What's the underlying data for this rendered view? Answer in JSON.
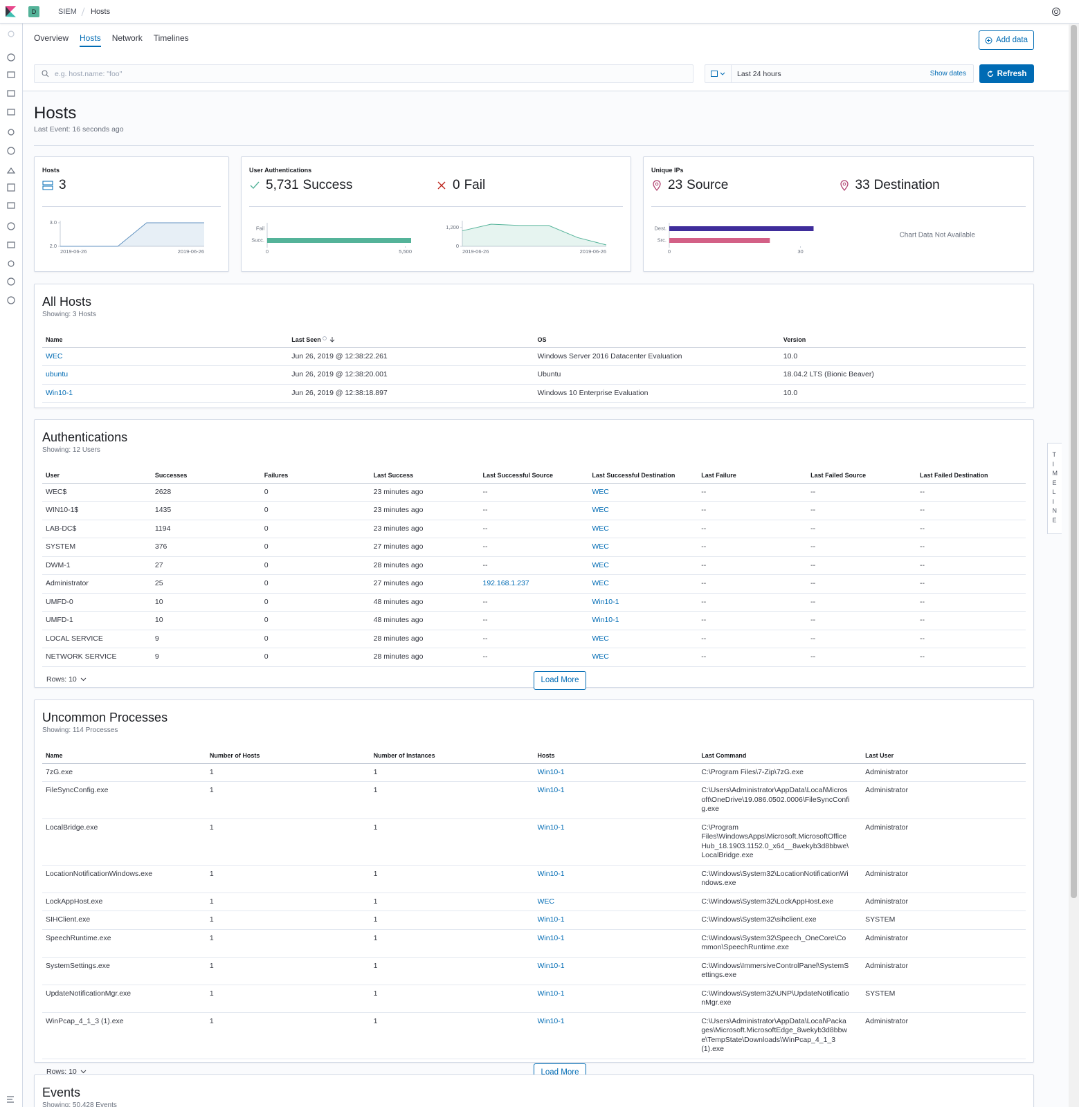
{
  "header": {
    "badge": "D",
    "breadcrumbs": [
      "SIEM",
      "Hosts"
    ]
  },
  "tabs": [
    "Overview",
    "Hosts",
    "Network",
    "Timelines"
  ],
  "active_tab": 1,
  "add_data": "Add data",
  "search_placeholder": "e.g. host.name: \"foo\"",
  "date_range": "Last 24 hours",
  "show_dates": "Show dates",
  "refresh": "Refresh",
  "page": {
    "title": "Hosts",
    "subtitle": "Last Event: 16 seconds ago"
  },
  "kpis": [
    {
      "title": "Hosts",
      "items": [
        {
          "value": "3"
        }
      ],
      "charts": [
        {
          "type": "area",
          "categories": [
            "2019-06-26",
            null,
            null,
            null,
            null,
            "2019-06-26"
          ],
          "values": [
            2,
            2,
            2,
            3,
            3,
            3
          ],
          "ylim": [
            2,
            3
          ],
          "yticks": [
            {
              "value": 2,
              "label": "2.0"
            },
            {
              "value": 3,
              "label": "3.0"
            }
          ],
          "color": "#6092c0"
        }
      ]
    },
    {
      "title": "User Authentications",
      "items": [
        {
          "value": "5,731",
          "label": "Success"
        },
        {
          "value": "0",
          "label": "Fail"
        }
      ],
      "charts": [
        {
          "type": "bar",
          "categories": [
            "Fail",
            "Succ."
          ],
          "values": [
            0,
            5731
          ],
          "xlim": [
            0,
            5731
          ],
          "xticks": [
            0,
            {
              "value": 5500,
              "label": "5,500"
            }
          ],
          "color": "#54b399"
        },
        {
          "type": "area",
          "categories": [
            "2019-06-26",
            null,
            null,
            null,
            null,
            "2019-06-26"
          ],
          "values": [
            990,
            1410,
            1330,
            1330,
            560,
            90
          ],
          "ylim": [
            0,
            1500
          ],
          "yticks": [
            0,
            {
              "value": 1200,
              "label": "1,200"
            }
          ],
          "color": "#54b399"
        }
      ]
    },
    {
      "title": "Unique IPs",
      "items": [
        {
          "value": "23",
          "label": "Source"
        },
        {
          "value": "33",
          "label": "Destination"
        }
      ],
      "charts": [
        {
          "type": "bar",
          "categories": [
            "Dest.",
            "Src."
          ],
          "values": [
            33,
            23
          ],
          "xlim": [
            0,
            33
          ],
          "xticks": [
            0,
            30
          ],
          "colors": [
            "#3f2d9b",
            "#d36086"
          ]
        },
        {
          "type": "message",
          "message": "Chart Data Not Available"
        }
      ]
    }
  ],
  "all_hosts": {
    "title": "All Hosts",
    "subtitle": "Showing: 3 Hosts",
    "columns": [
      "Name",
      "Last Seen",
      "OS",
      "Version"
    ],
    "sorted_column": 1,
    "link_columns": [
      0
    ],
    "rows": [
      [
        "WEC",
        "Jun 26, 2019 @ 12:38:22.261",
        "Windows Server 2016 Datacenter Evaluation",
        "10.0"
      ],
      [
        "ubuntu",
        "Jun 26, 2019 @ 12:38:20.001",
        "Ubuntu",
        "18.04.2 LTS (Bionic Beaver)"
      ],
      [
        "Win10-1",
        "Jun 26, 2019 @ 12:38:18.897",
        "Windows 10 Enterprise Evaluation",
        "10.0"
      ]
    ]
  },
  "authentications": {
    "title": "Authentications",
    "subtitle": "Showing: 12 Users",
    "columns": [
      "User",
      "Successes",
      "Failures",
      "Last Success",
      "Last Successful Source",
      "Last Successful Destination",
      "Last Failure",
      "Last Failed Source",
      "Last Failed Destination"
    ],
    "link_columns": [
      4,
      5
    ],
    "rows": [
      [
        "WEC$",
        2628,
        0,
        "23 minutes ago",
        "--",
        "WEC",
        "--",
        "--",
        "--"
      ],
      [
        "WIN10-1$",
        1435,
        0,
        "23 minutes ago",
        "--",
        "WEC",
        "--",
        "--",
        "--"
      ],
      [
        "LAB-DC$",
        1194,
        0,
        "23 minutes ago",
        "--",
        "WEC",
        "--",
        "--",
        "--"
      ],
      [
        "SYSTEM",
        376,
        0,
        "27 minutes ago",
        "--",
        "WEC",
        "--",
        "--",
        "--"
      ],
      [
        "DWM-1",
        27,
        0,
        "28 minutes ago",
        "--",
        "WEC",
        "--",
        "--",
        "--"
      ],
      [
        "Administrator",
        25,
        0,
        "27 minutes ago",
        "192.168.1.237",
        "WEC",
        "--",
        "--",
        "--"
      ],
      [
        "UMFD-0",
        10,
        0,
        "48 minutes ago",
        "--",
        "Win10-1",
        "--",
        "--",
        "--"
      ],
      [
        "UMFD-1",
        10,
        0,
        "48 minutes ago",
        "--",
        "Win10-1",
        "--",
        "--",
        "--"
      ],
      [
        "LOCAL SERVICE",
        9,
        0,
        "28 minutes ago",
        "--",
        "WEC",
        "--",
        "--",
        "--"
      ],
      [
        "NETWORK SERVICE",
        9,
        0,
        "28 minutes ago",
        "--",
        "WEC",
        "--",
        "--",
        "--"
      ]
    ],
    "rows_label": "Rows: 10",
    "load_more": "Load More"
  },
  "uncommon_processes": {
    "title": "Uncommon Processes",
    "subtitle": "Showing: 114 Processes",
    "columns": [
      "Name",
      "Number of Hosts",
      "Number of Instances",
      "Hosts",
      "Last Command",
      "Last User"
    ],
    "link_columns": [
      3
    ],
    "wrap_column": 4,
    "rows": [
      [
        "7zG.exe",
        1,
        1,
        "Win10-1",
        "C:\\Program Files\\7-Zip\\7zG.exe",
        "Administrator"
      ],
      [
        "FileSyncConfig.exe",
        1,
        1,
        "Win10-1",
        "C:\\Users\\Administrator\\AppData\\Local\\Microsoft\\OneDrive\\19.086.0502.0006\\FileSyncConfig.exe",
        "Administrator"
      ],
      [
        "LocalBridge.exe",
        1,
        1,
        "Win10-1",
        "C:\\Program Files\\WindowsApps\\Microsoft.MicrosoftOfficeHub_18.1903.1152.0_x64__8wekyb3d8bbwe\\LocalBridge.exe",
        "Administrator"
      ],
      [
        "LocationNotificationWindows.exe",
        1,
        1,
        "Win10-1",
        "C:\\Windows\\System32\\LocationNotificationWindows.exe",
        "Administrator"
      ],
      [
        "LockAppHost.exe",
        1,
        1,
        "WEC",
        "C:\\Windows\\System32\\LockAppHost.exe",
        "Administrator"
      ],
      [
        "SIHClient.exe",
        1,
        1,
        "Win10-1",
        "C:\\Windows\\System32\\sihclient.exe",
        "SYSTEM"
      ],
      [
        "SpeechRuntime.exe",
        1,
        1,
        "Win10-1",
        "C:\\Windows\\System32\\Speech_OneCore\\Common\\SpeechRuntime.exe",
        "Administrator"
      ],
      [
        "SystemSettings.exe",
        1,
        1,
        "Win10-1",
        "C:\\Windows\\ImmersiveControlPanel\\SystemSettings.exe",
        "Administrator"
      ],
      [
        "UpdateNotificationMgr.exe",
        1,
        1,
        "Win10-1",
        "C:\\Windows\\System32\\UNP\\UpdateNotificationMgr.exe",
        "SYSTEM"
      ],
      [
        "WinPcap_4_1_3 (1).exe",
        1,
        1,
        "Win10-1",
        "C:\\Users\\Administrator\\AppData\\Local\\Packages\\Microsoft.MicrosoftEdge_8wekyb3d8bbwe\\TempState\\Downloads\\WinPcap_4_1_3 (1).exe",
        "Administrator"
      ]
    ],
    "rows_label": "Rows: 10",
    "load_more": "Load More"
  },
  "events": {
    "title": "Events",
    "subtitle": "Showing: 50,428 Events"
  },
  "timeline_tab": "TIMELINE"
}
